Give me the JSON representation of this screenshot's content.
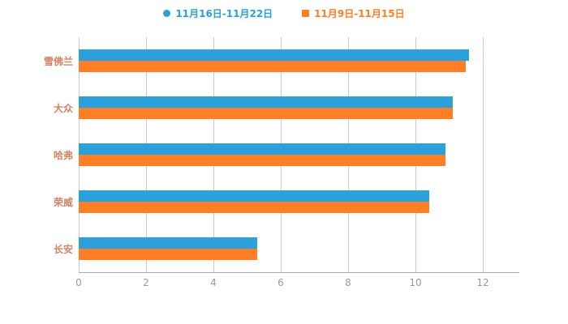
{
  "chart_data": {
    "type": "bar",
    "orientation": "horizontal",
    "title": "",
    "categories": [
      "雪佛兰",
      "大众",
      "哈弗",
      "荣威",
      "长安"
    ],
    "series": [
      {
        "name": "11月16日-11月22日",
        "color": "#2BA0DA",
        "values": [
          11.6,
          11.1,
          10.9,
          10.4,
          5.3
        ]
      },
      {
        "name": "11月9日-11月15日",
        "color": "#FF7E26",
        "values": [
          11.5,
          11.1,
          10.9,
          10.4,
          5.3
        ]
      }
    ],
    "xlim": [
      0,
      12
    ],
    "xticks": [
      0,
      2,
      4,
      6,
      8,
      10,
      12
    ],
    "grid": "vertical",
    "legend_position": "top"
  },
  "legend": {
    "items": [
      {
        "label": "11月16日-11月22日",
        "color": "#2BA0DA",
        "marker": "circle"
      },
      {
        "label": "11月9日-11月15日",
        "color": "#FF7E26",
        "marker": "square"
      }
    ]
  },
  "axis": {
    "ticks": [
      "0",
      "2",
      "4",
      "6",
      "8",
      "10",
      "12"
    ]
  }
}
